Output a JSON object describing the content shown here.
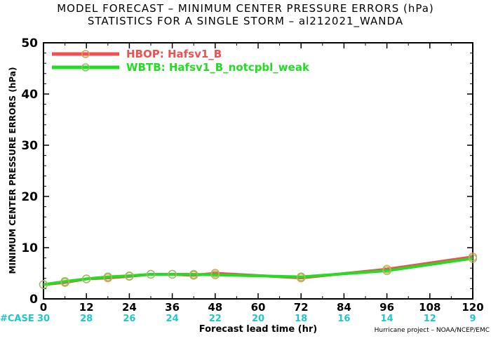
{
  "chart_data": {
    "type": "line",
    "title": "MODEL FORECAST – MINIMUM CENTER PRESSURE ERRORS (hPa)",
    "subtitle": "STATISTICS FOR A SINGLE STORM – al212021_WANDA",
    "xlabel": "Forecast lead time (hr)",
    "ylabel": "MINIMUM CENTER PRESSURE ERRORS (hPa)",
    "xlim": [
      0,
      120
    ],
    "ylim": [
      0,
      50
    ],
    "x_ticks": [
      "0",
      "12",
      "24",
      "36",
      "48",
      "60",
      "72",
      "84",
      "96",
      "108",
      "120"
    ],
    "y_ticks": [
      "0",
      "10",
      "20",
      "30",
      "40",
      "50"
    ],
    "grid": false,
    "legend_position": "top-left",
    "series": [
      {
        "name": "HBOP: Hafsv1_B",
        "color": "#f05050",
        "x": [
          0,
          6,
          12,
          18,
          24,
          30,
          36,
          42,
          48,
          72,
          96,
          120
        ],
        "y": [
          2.8,
          3.2,
          3.9,
          4.1,
          4.4,
          4.8,
          4.8,
          4.6,
          5.0,
          4.1,
          5.8,
          8.2
        ]
      },
      {
        "name": "WBTB: Hafsv1_B_notcpbl_weak",
        "color": "#22dd22",
        "x": [
          0,
          6,
          12,
          18,
          24,
          30,
          36,
          42,
          48,
          72,
          96,
          120
        ],
        "y": [
          2.8,
          3.4,
          3.9,
          4.3,
          4.5,
          4.8,
          4.8,
          4.8,
          4.7,
          4.3,
          5.5,
          7.9
        ]
      }
    ],
    "case_label": "#CASE",
    "case_counts": {
      "x": [
        0,
        12,
        24,
        36,
        48,
        60,
        72,
        84,
        96,
        108,
        120
      ],
      "labels": [
        "30",
        "28",
        "26",
        "24",
        "22",
        "20",
        "18",
        "16",
        "14",
        "12",
        "9"
      ]
    },
    "credit": "Hurricane project – NOAA/NCEP/EMC"
  }
}
